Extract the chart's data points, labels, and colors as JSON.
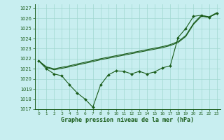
{
  "title": "Graphe pression niveau de la mer (hPa)",
  "background_color": "#c8eef0",
  "grid_color": "#a0d8d0",
  "line_color": "#1a5c1a",
  "xlim": [
    -0.5,
    23.5
  ],
  "ylim": [
    1017,
    1027.4
  ],
  "yticks": [
    1017,
    1018,
    1019,
    1020,
    1021,
    1022,
    1023,
    1024,
    1025,
    1026,
    1027
  ],
  "xticks": [
    0,
    1,
    2,
    3,
    4,
    5,
    6,
    7,
    8,
    9,
    10,
    11,
    12,
    13,
    14,
    15,
    16,
    17,
    18,
    19,
    20,
    21,
    22,
    23
  ],
  "series_noisy": {
    "x": [
      0,
      1,
      2,
      3,
      4,
      5,
      6,
      7,
      8,
      9,
      10,
      11,
      12,
      13,
      14,
      15,
      16,
      17,
      18,
      19,
      20,
      21,
      22,
      23
    ],
    "y": [
      1021.8,
      1021.0,
      1020.5,
      1020.3,
      1019.4,
      1018.6,
      1018.0,
      1017.2,
      1019.4,
      1020.4,
      1020.8,
      1020.75,
      1020.5,
      1020.75,
      1020.5,
      1020.7,
      1021.1,
      1021.3,
      1024.1,
      1025.0,
      1026.2,
      1026.3,
      1026.1,
      1026.5
    ]
  },
  "series_smooth1": {
    "x": [
      0,
      1,
      2,
      3,
      4,
      5,
      6,
      7,
      8,
      9,
      10,
      11,
      12,
      13,
      14,
      15,
      16,
      17,
      18,
      19,
      20,
      21,
      22,
      23
    ],
    "y": [
      1021.8,
      1021.15,
      1020.9,
      1021.05,
      1021.2,
      1021.38,
      1021.55,
      1021.72,
      1021.9,
      1022.05,
      1022.2,
      1022.35,
      1022.5,
      1022.65,
      1022.8,
      1022.95,
      1023.1,
      1023.3,
      1023.6,
      1024.2,
      1025.4,
      1026.2,
      1026.1,
      1026.5
    ]
  },
  "series_smooth2": {
    "x": [
      0,
      1,
      2,
      3,
      4,
      5,
      6,
      7,
      8,
      9,
      10,
      11,
      12,
      13,
      14,
      15,
      16,
      17,
      18,
      19,
      20,
      21,
      22,
      23
    ],
    "y": [
      1021.8,
      1021.2,
      1021.0,
      1021.15,
      1021.3,
      1021.48,
      1021.65,
      1021.82,
      1022.0,
      1022.15,
      1022.3,
      1022.45,
      1022.6,
      1022.75,
      1022.9,
      1023.05,
      1023.2,
      1023.4,
      1023.7,
      1024.3,
      1025.5,
      1026.3,
      1026.15,
      1026.55
    ]
  }
}
